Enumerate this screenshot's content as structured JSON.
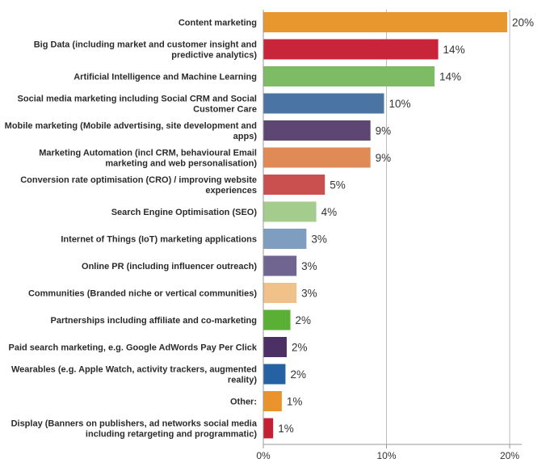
{
  "chart_data": {
    "type": "bar",
    "orientation": "horizontal",
    "categories": [
      [
        "Content marketing"
      ],
      [
        "Big Data (including market and customer insight and",
        "predictive analytics)"
      ],
      [
        "Artificial Intelligence and Machine Learning"
      ],
      [
        "Social media marketing including Social CRM and Social",
        "Customer Care"
      ],
      [
        "Mobile marketing (Mobile advertising, site development and",
        "apps)"
      ],
      [
        "Marketing Automation (incl CRM, behavioural Email",
        "marketing and web personalisation)"
      ],
      [
        "Conversion rate optimisation (CRO) / improving website",
        "experiences"
      ],
      [
        "Search Engine Optimisation (SEO)"
      ],
      [
        "Internet of Things (IoT) marketing applications"
      ],
      [
        "Online PR (including influencer outreach)"
      ],
      [
        "Communities (Branded niche or vertical communities)"
      ],
      [
        "Partnerships including affiliate and co-marketing"
      ],
      [
        "Paid search marketing, e.g. Google AdWords Pay Per Click"
      ],
      [
        "Wearables (e.g. Apple Watch, activity trackers, augmented",
        "reality)"
      ],
      [
        "Other:"
      ],
      [
        "Display (Banners on publishers, ad networks social media",
        "including retargeting and programmatic)"
      ]
    ],
    "values": [
      19.8,
      14.2,
      13.9,
      9.8,
      8.7,
      8.7,
      5.0,
      4.3,
      3.5,
      2.7,
      2.7,
      2.2,
      1.9,
      1.8,
      1.5,
      0.8
    ],
    "value_labels": [
      "20%",
      "14%",
      "14%",
      "10%",
      "9%",
      "9%",
      "5%",
      "4%",
      "3%",
      "3%",
      "3%",
      "2%",
      "2%",
      "2%",
      "1%",
      "1%"
    ],
    "colors": [
      "#e8962e",
      "#c8243a",
      "#7dbb64",
      "#4a74a4",
      "#5e4673",
      "#e08b55",
      "#c9504f",
      "#a4cd8d",
      "#7f9dbf",
      "#6f6590",
      "#f0c28a",
      "#5ab035",
      "#4b2f65",
      "#2661a3",
      "#ea922c",
      "#c42033"
    ],
    "x_ticks": [
      "0%",
      "10%",
      "20%"
    ],
    "xlim": [
      0,
      21
    ],
    "grid": true,
    "title": "",
    "xlabel": "",
    "ylabel": ""
  }
}
